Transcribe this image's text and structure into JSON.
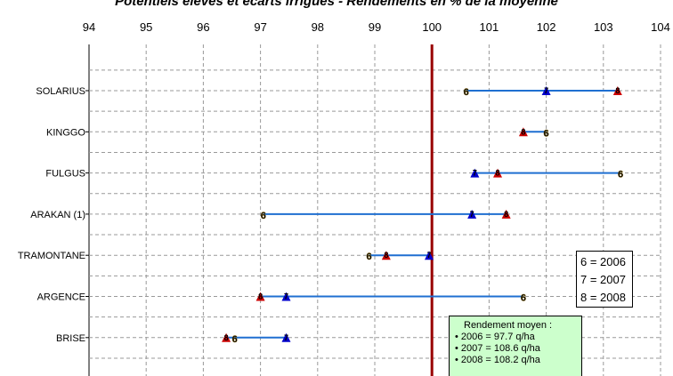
{
  "chart_data": {
    "type": "dumbbell",
    "title": "Potentiels élevés et écarts irrigués - Rendements en % de la moyenne",
    "xlim": [
      94,
      104
    ],
    "xticks": [
      "94",
      "95",
      "96",
      "97",
      "98",
      "99",
      "100",
      "101",
      "102",
      "103",
      "104"
    ],
    "reference_line": 100,
    "categories": [
      "SOLARIUS",
      "KINGGO",
      "FULGUS",
      "ARAKAN (1)",
      "TRAMONTANE",
      "ARGENCE",
      "BRISE"
    ],
    "series": [
      {
        "name": "6 = 2006",
        "label": "6",
        "color": "#ffcc00",
        "values": [
          100.6,
          102.0,
          103.3,
          97.05,
          98.9,
          101.6,
          96.55
        ]
      },
      {
        "name": "7 = 2007",
        "label": "7",
        "color": "#0000cc",
        "values": [
          102.0,
          null,
          100.75,
          100.7,
          99.95,
          97.45,
          97.45
        ]
      },
      {
        "name": "8 = 2008",
        "label": "8",
        "color": "#cc0000",
        "values": [
          103.25,
          101.6,
          101.15,
          101.3,
          99.2,
          97.0,
          96.4
        ]
      }
    ]
  },
  "legend": {
    "lines": [
      "6 = 2006",
      "7 = 2007",
      "8 = 2008"
    ]
  },
  "note": {
    "header": "Rendement moyen :",
    "lines": [
      "• 2006 = 97.7 q/ha",
      "• 2007 = 108.6 q/ha",
      "• 2008 = 108.2 q/ha"
    ]
  },
  "colors": {
    "range_line": "#1f6fd1",
    "reference": "#990000",
    "grid": "#999999"
  }
}
